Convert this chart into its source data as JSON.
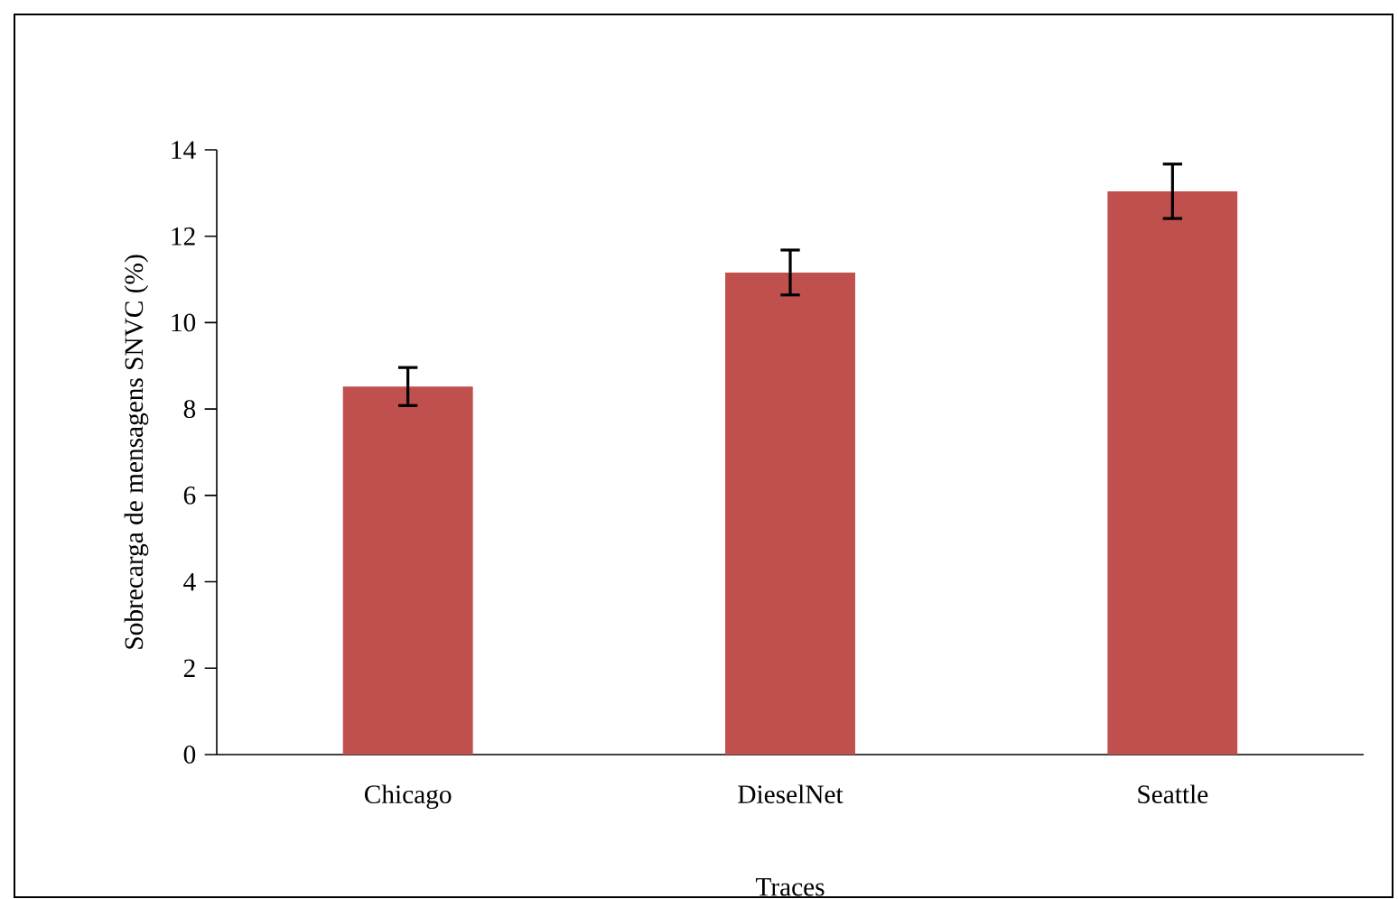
{
  "chart_data": {
    "type": "bar",
    "xlabel": "Traces",
    "ylabel": "Sobrecarga de mensagens SNVC (%)",
    "categories": [
      "Chicago",
      "DieselNet",
      "Seattle"
    ],
    "values": [
      8.52,
      11.16,
      13.04
    ],
    "errors": [
      0.44,
      0.52,
      0.63
    ],
    "color": "#c0504d",
    "ylim": [
      0,
      14
    ],
    "yticks": [
      0,
      2,
      4,
      6,
      8,
      10,
      12,
      14
    ]
  }
}
